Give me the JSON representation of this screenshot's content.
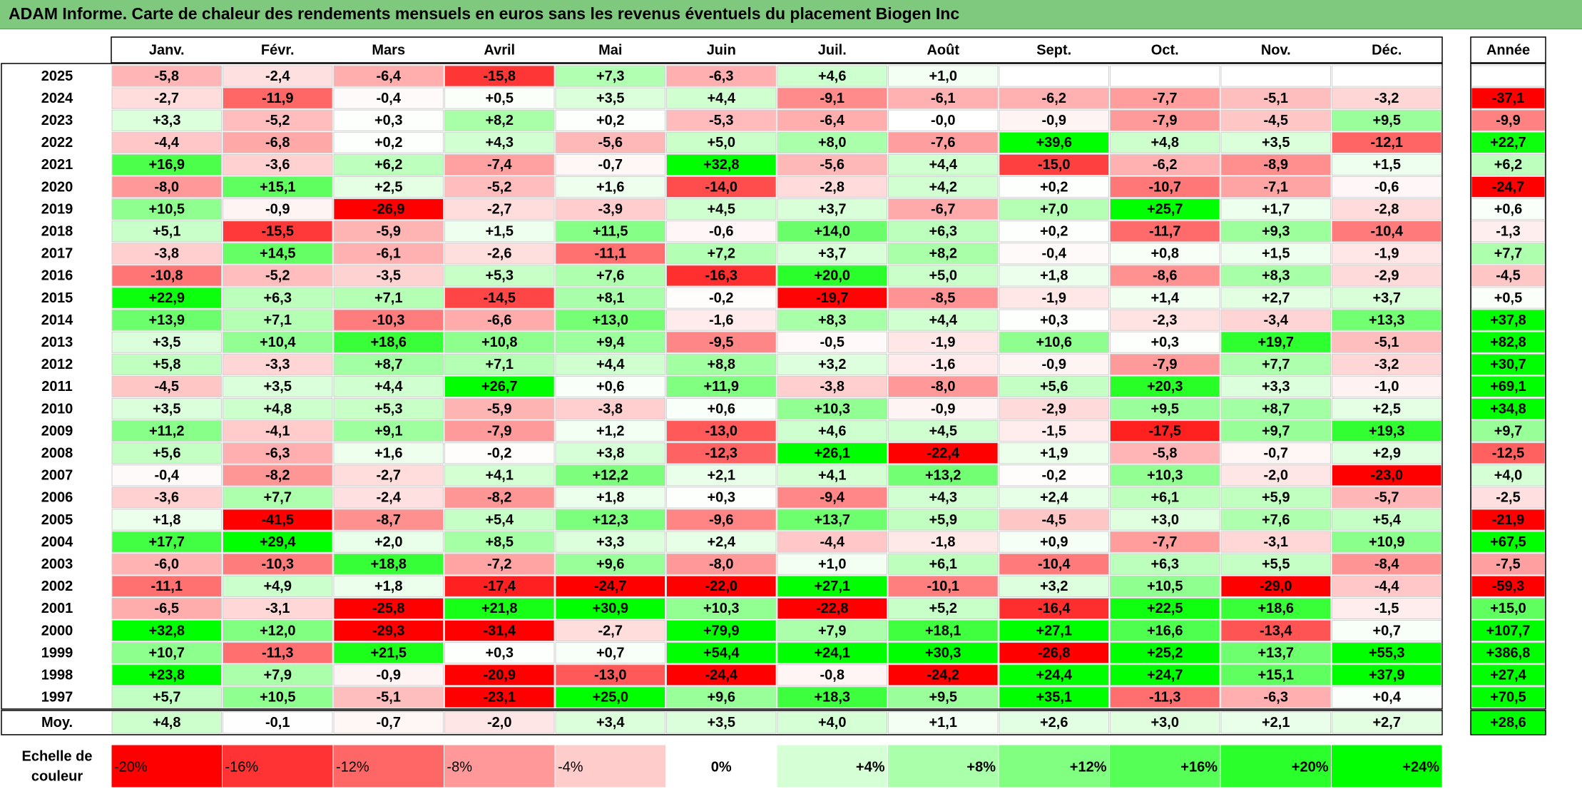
{
  "title": "ADAM Informe. Carte de chaleur des rendements mensuels en euros sans les revenus éventuels du placement Biogen Inc",
  "chart_data": {
    "type": "heatmap",
    "columns": [
      "Janv.",
      "Févr.",
      "Mars",
      "Avril",
      "Mai",
      "Juin",
      "Juil.",
      "Août",
      "Sept.",
      "Oct.",
      "Nov.",
      "Déc."
    ],
    "year_header": "Année",
    "rows": [
      {
        "label": "2025",
        "values": [
          "-5,8",
          "-2,4",
          "-6,4",
          "-15,8",
          "+7,3",
          "-6,3",
          "+4,6",
          "+1,0",
          "",
          "",
          "",
          ""
        ],
        "year": ""
      },
      {
        "label": "2024",
        "values": [
          "-2,7",
          "-11,9",
          "-0,4",
          "+0,5",
          "+3,5",
          "+4,4",
          "-9,1",
          "-6,1",
          "-6,2",
          "-7,7",
          "-5,1",
          "-3,2"
        ],
        "year": "-37,1"
      },
      {
        "label": "2023",
        "values": [
          "+3,3",
          "-5,2",
          "+0,3",
          "+8,2",
          "+0,2",
          "-5,3",
          "-6,4",
          "-0,0",
          "-0,9",
          "-7,9",
          "-4,5",
          "+9,5"
        ],
        "year": "-9,9"
      },
      {
        "label": "2022",
        "values": [
          "-4,4",
          "-6,8",
          "+0,2",
          "+4,3",
          "-5,6",
          "+5,0",
          "+8,0",
          "-7,6",
          "+39,6",
          "+4,8",
          "+3,5",
          "-12,1"
        ],
        "year": "+22,7"
      },
      {
        "label": "2021",
        "values": [
          "+16,9",
          "-3,6",
          "+6,2",
          "-7,4",
          "-0,7",
          "+32,8",
          "-5,6",
          "+4,4",
          "-15,0",
          "-6,2",
          "-8,9",
          "+1,5"
        ],
        "year": "+6,2"
      },
      {
        "label": "2020",
        "values": [
          "-8,0",
          "+15,1",
          "+2,5",
          "-5,2",
          "+1,6",
          "-14,0",
          "-2,8",
          "+4,2",
          "+0,2",
          "-10,7",
          "-7,1",
          "-0,6"
        ],
        "year": "-24,7"
      },
      {
        "label": "2019",
        "values": [
          "+10,5",
          "-0,9",
          "-26,9",
          "-2,7",
          "-3,9",
          "+4,5",
          "+3,7",
          "-6,7",
          "+7,0",
          "+25,7",
          "+1,7",
          "-2,8"
        ],
        "year": "+0,6"
      },
      {
        "label": "2018",
        "values": [
          "+5,1",
          "-15,5",
          "-5,9",
          "+1,5",
          "+11,5",
          "-0,6",
          "+14,0",
          "+6,3",
          "+0,2",
          "-11,7",
          "+9,3",
          "-10,4"
        ],
        "year": "-1,3"
      },
      {
        "label": "2017",
        "values": [
          "-3,8",
          "+14,5",
          "-6,1",
          "-2,6",
          "-11,1",
          "+7,2",
          "+3,7",
          "+8,2",
          "-0,4",
          "+0,8",
          "+1,5",
          "-1,9"
        ],
        "year": "+7,7"
      },
      {
        "label": "2016",
        "values": [
          "-10,8",
          "-5,2",
          "-3,5",
          "+5,3",
          "+7,6",
          "-16,3",
          "+20,0",
          "+5,0",
          "+1,8",
          "-8,6",
          "+8,3",
          "-2,9"
        ],
        "year": "-4,5"
      },
      {
        "label": "2015",
        "values": [
          "+22,9",
          "+6,3",
          "+7,1",
          "-14,5",
          "+8,1",
          "-0,2",
          "-19,7",
          "-8,5",
          "-1,9",
          "+1,4",
          "+2,7",
          "+3,7"
        ],
        "year": "+0,5"
      },
      {
        "label": "2014",
        "values": [
          "+13,9",
          "+7,1",
          "-10,3",
          "-6,6",
          "+13,0",
          "-1,6",
          "+8,3",
          "+4,4",
          "+0,3",
          "-2,3",
          "-3,4",
          "+13,3"
        ],
        "year": "+37,8"
      },
      {
        "label": "2013",
        "values": [
          "+3,5",
          "+10,4",
          "+18,6",
          "+10,8",
          "+9,4",
          "-9,5",
          "-0,5",
          "-1,9",
          "+10,6",
          "+0,3",
          "+19,7",
          "-5,1"
        ],
        "year": "+82,8"
      },
      {
        "label": "2012",
        "values": [
          "+5,8",
          "-3,3",
          "+8,7",
          "+7,1",
          "+4,4",
          "+8,8",
          "+3,2",
          "-1,6",
          "-0,9",
          "-7,9",
          "+7,7",
          "-3,2"
        ],
        "year": "+30,7"
      },
      {
        "label": "2011",
        "values": [
          "-4,5",
          "+3,5",
          "+4,4",
          "+26,7",
          "+0,6",
          "+11,9",
          "-3,8",
          "-8,0",
          "+5,6",
          "+20,3",
          "+3,3",
          "-1,0"
        ],
        "year": "+69,1"
      },
      {
        "label": "2010",
        "values": [
          "+3,5",
          "+4,8",
          "+5,3",
          "-5,9",
          "-3,8",
          "+0,6",
          "+10,3",
          "-0,9",
          "-2,9",
          "+9,5",
          "+8,7",
          "+2,5"
        ],
        "year": "+34,8"
      },
      {
        "label": "2009",
        "values": [
          "+11,2",
          "-4,1",
          "+9,1",
          "-7,9",
          "+1,2",
          "-13,0",
          "+4,6",
          "+4,5",
          "-1,5",
          "-17,5",
          "+9,7",
          "+19,3"
        ],
        "year": "+9,7"
      },
      {
        "label": "2008",
        "values": [
          "+5,6",
          "-6,3",
          "+1,6",
          "-0,2",
          "+3,8",
          "-12,3",
          "+26,1",
          "-22,4",
          "+1,9",
          "-5,8",
          "-0,7",
          "+2,9"
        ],
        "year": "-12,5"
      },
      {
        "label": "2007",
        "values": [
          "-0,4",
          "-8,2",
          "-2,7",
          "+4,1",
          "+12,2",
          "+2,1",
          "+4,1",
          "+13,2",
          "-0,2",
          "+10,3",
          "-2,0",
          "-23,0"
        ],
        "year": "+4,0"
      },
      {
        "label": "2006",
        "values": [
          "-3,6",
          "+7,7",
          "-2,4",
          "-8,2",
          "+1,8",
          "+0,3",
          "-9,4",
          "+4,3",
          "+2,4",
          "+6,1",
          "+5,9",
          "-5,7"
        ],
        "year": "-2,5"
      },
      {
        "label": "2005",
        "values": [
          "+1,8",
          "-41,5",
          "-8,7",
          "+5,4",
          "+12,3",
          "-9,6",
          "+13,7",
          "+5,9",
          "-4,5",
          "+3,0",
          "+7,6",
          "+5,4"
        ],
        "year": "-21,9"
      },
      {
        "label": "2004",
        "values": [
          "+17,7",
          "+29,4",
          "+2,0",
          "+8,5",
          "+3,3",
          "+2,4",
          "-4,4",
          "-1,8",
          "+0,9",
          "-7,7",
          "-3,1",
          "+10,9"
        ],
        "year": "+67,5"
      },
      {
        "label": "2003",
        "values": [
          "-6,0",
          "-10,3",
          "+18,8",
          "-7,2",
          "+9,6",
          "-8,0",
          "+1,0",
          "+6,1",
          "-10,4",
          "+6,3",
          "+5,5",
          "-8,4"
        ],
        "year": "-7,5"
      },
      {
        "label": "2002",
        "values": [
          "-11,1",
          "+4,9",
          "+1,8",
          "-17,4",
          "-24,7",
          "-22,0",
          "+27,1",
          "-10,1",
          "+3,2",
          "+10,5",
          "-29,0",
          "-4,4"
        ],
        "year": "-59,3"
      },
      {
        "label": "2001",
        "values": [
          "-6,5",
          "-3,1",
          "-25,8",
          "+21,8",
          "+30,9",
          "+10,3",
          "-22,8",
          "+5,2",
          "-16,4",
          "+22,5",
          "+18,6",
          "-1,5"
        ],
        "year": "+15,0"
      },
      {
        "label": "2000",
        "values": [
          "+32,8",
          "+12,0",
          "-29,3",
          "-31,4",
          "-2,7",
          "+79,9",
          "+7,9",
          "+18,1",
          "+27,1",
          "+16,6",
          "-13,4",
          "+0,7"
        ],
        "year": "+107,7"
      },
      {
        "label": "1999",
        "values": [
          "+10,7",
          "-11,3",
          "+21,5",
          "+0,3",
          "+0,7",
          "+54,4",
          "+24,1",
          "+30,3",
          "-26,8",
          "+25,2",
          "+13,7",
          "+55,3"
        ],
        "year": "+386,8"
      },
      {
        "label": "1998",
        "values": [
          "+23,8",
          "+7,9",
          "-0,9",
          "-20,9",
          "-13,0",
          "-24,4",
          "-0,8",
          "-24,2",
          "+24,4",
          "+24,7",
          "+15,1",
          "+37,9"
        ],
        "year": "+27,4"
      },
      {
        "label": "1997",
        "values": [
          "+5,7",
          "+10,5",
          "-5,1",
          "-23,1",
          "+25,0",
          "+9,6",
          "+18,3",
          "+9,5",
          "+35,1",
          "-11,3",
          "-6,3",
          "+0,4"
        ],
        "year": "+70,5"
      }
    ],
    "average": {
      "label": "Moy.",
      "values": [
        "+4,8",
        "-0,1",
        "-0,7",
        "-2,0",
        "+3,4",
        "+3,5",
        "+4,0",
        "+1,1",
        "+2,6",
        "+3,0",
        "+2,1",
        "+2,7"
      ],
      "year": "+28,6"
    },
    "scale": {
      "label_line1": "Echelle de",
      "label_line2": "couleur",
      "steps": [
        {
          "label": "-20%",
          "value": -20
        },
        {
          "label": "-16%",
          "value": -16
        },
        {
          "label": "-12%",
          "value": -12
        },
        {
          "label": "-8%",
          "value": -8
        },
        {
          "label": "-4%",
          "value": -4
        },
        {
          "label": "0%",
          "value": 0
        },
        {
          "label": "+4%",
          "value": 4
        },
        {
          "label": "+8%",
          "value": 8
        },
        {
          "label": "+12%",
          "value": 12
        },
        {
          "label": "+16%",
          "value": 16
        },
        {
          "label": "+20%",
          "value": 20
        },
        {
          "label": "+24%",
          "value": 24
        }
      ]
    },
    "colors": {
      "negative": "#ff0000",
      "neutral": "#ffffff",
      "positive": "#00ff00",
      "header": "#7fc97f"
    }
  }
}
